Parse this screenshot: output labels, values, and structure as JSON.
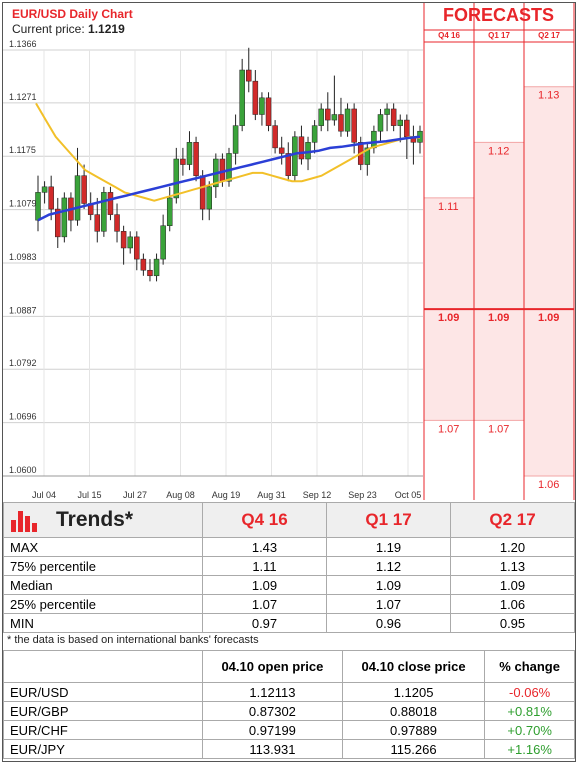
{
  "chart_data": {
    "type": "candlestick",
    "title": "EUR/USD Daily Chart",
    "current_price_label": "Current price:",
    "current_price": "1.1219",
    "y_ticks": [
      "1.1366",
      "1.1271",
      "1.1175",
      "1.1079",
      "1.0983",
      "1.0887",
      "1.0792",
      "1.0696",
      "1.0600"
    ],
    "ylim": [
      1.06,
      1.1366
    ],
    "x_ticks": [
      "Jul 04",
      "Jul 15",
      "Jul 27",
      "Aug 08",
      "Aug 19",
      "Aug 31",
      "Sep 12",
      "Sep 23",
      "Oct 05"
    ],
    "grid": true,
    "candles": [
      [
        1.106,
        1.114,
        1.104,
        1.111
      ],
      [
        1.111,
        1.113,
        1.109,
        1.112
      ],
      [
        1.112,
        1.114,
        1.106,
        1.108
      ],
      [
        1.108,
        1.11,
        1.101,
        1.103
      ],
      [
        1.103,
        1.111,
        1.102,
        1.11
      ],
      [
        1.11,
        1.111,
        1.104,
        1.106
      ],
      [
        1.106,
        1.119,
        1.105,
        1.114
      ],
      [
        1.114,
        1.116,
        1.108,
        1.109
      ],
      [
        1.109,
        1.111,
        1.106,
        1.107
      ],
      [
        1.107,
        1.11,
        1.102,
        1.104
      ],
      [
        1.104,
        1.112,
        1.103,
        1.111
      ],
      [
        1.111,
        1.112,
        1.106,
        1.107
      ],
      [
        1.107,
        1.109,
        1.102,
        1.104
      ],
      [
        1.104,
        1.105,
        1.098,
        1.101
      ],
      [
        1.101,
        1.104,
        1.1,
        1.103
      ],
      [
        1.103,
        1.104,
        1.097,
        1.099
      ],
      [
        1.099,
        1.1,
        1.096,
        1.097
      ],
      [
        1.097,
        1.099,
        1.095,
        1.096
      ],
      [
        1.096,
        1.1,
        1.095,
        1.099
      ],
      [
        1.099,
        1.107,
        1.098,
        1.105
      ],
      [
        1.105,
        1.112,
        1.104,
        1.11
      ],
      [
        1.11,
        1.119,
        1.109,
        1.117
      ],
      [
        1.117,
        1.119,
        1.114,
        1.116
      ],
      [
        1.116,
        1.122,
        1.115,
        1.12
      ],
      [
        1.12,
        1.121,
        1.113,
        1.114
      ],
      [
        1.114,
        1.115,
        1.106,
        1.108
      ],
      [
        1.108,
        1.113,
        1.106,
        1.112
      ],
      [
        1.112,
        1.118,
        1.11,
        1.117
      ],
      [
        1.117,
        1.118,
        1.112,
        1.113
      ],
      [
        1.113,
        1.119,
        1.112,
        1.118
      ],
      [
        1.118,
        1.125,
        1.116,
        1.123
      ],
      [
        1.123,
        1.135,
        1.122,
        1.133
      ],
      [
        1.133,
        1.137,
        1.129,
        1.131
      ],
      [
        1.131,
        1.133,
        1.124,
        1.125
      ],
      [
        1.125,
        1.129,
        1.123,
        1.128
      ],
      [
        1.128,
        1.129,
        1.122,
        1.123
      ],
      [
        1.123,
        1.124,
        1.118,
        1.119
      ],
      [
        1.119,
        1.121,
        1.116,
        1.118
      ],
      [
        1.118,
        1.12,
        1.113,
        1.114
      ],
      [
        1.114,
        1.122,
        1.113,
        1.121
      ],
      [
        1.121,
        1.123,
        1.116,
        1.117
      ],
      [
        1.117,
        1.121,
        1.115,
        1.12
      ],
      [
        1.12,
        1.124,
        1.118,
        1.123
      ],
      [
        1.123,
        1.127,
        1.122,
        1.126
      ],
      [
        1.126,
        1.129,
        1.122,
        1.124
      ],
      [
        1.124,
        1.132,
        1.123,
        1.125
      ],
      [
        1.125,
        1.128,
        1.121,
        1.122
      ],
      [
        1.122,
        1.127,
        1.121,
        1.126
      ],
      [
        1.126,
        1.127,
        1.118,
        1.12
      ],
      [
        1.12,
        1.121,
        1.115,
        1.116
      ],
      [
        1.116,
        1.12,
        1.114,
        1.119
      ],
      [
        1.119,
        1.123,
        1.118,
        1.122
      ],
      [
        1.122,
        1.126,
        1.12,
        1.125
      ],
      [
        1.125,
        1.127,
        1.122,
        1.126
      ],
      [
        1.126,
        1.127,
        1.122,
        1.123
      ],
      [
        1.123,
        1.125,
        1.12,
        1.124
      ],
      [
        1.124,
        1.125,
        1.117,
        1.121
      ],
      [
        1.121,
        1.123,
        1.116,
        1.12
      ],
      [
        1.12,
        1.123,
        1.118,
        1.122
      ]
    ],
    "ma_slow": [
      1.106,
      1.107,
      1.1075,
      1.108,
      1.1085,
      1.109,
      1.1095,
      1.11,
      1.1105,
      1.111,
      1.1115,
      1.112,
      1.1125,
      1.113,
      1.1135,
      1.114,
      1.1145,
      1.115,
      1.1155,
      1.116,
      1.1165,
      1.117,
      1.1175,
      1.118,
      1.1182,
      1.1185,
      1.119,
      1.1192,
      1.1195,
      1.1198,
      1.12,
      1.1202,
      1.1205,
      1.1208,
      1.121
    ],
    "ma_fast": [
      1.127,
      1.124,
      1.121,
      1.119,
      1.117,
      1.115,
      1.114,
      1.113,
      1.112,
      1.111,
      1.1105,
      1.11,
      1.1095,
      1.11,
      1.1105,
      1.111,
      1.1115,
      1.112,
      1.1125,
      1.113,
      1.1135,
      1.114,
      1.1145,
      1.1145,
      1.114,
      1.1135,
      1.113,
      1.113,
      1.1135,
      1.114,
      1.115,
      1.116,
      1.117,
      1.118,
      1.119,
      1.1195,
      1.12,
      1.1205,
      1.121,
      1.1208
    ],
    "forecast_columns": [
      "Q4 16",
      "Q1 17",
      "Q2 17"
    ],
    "forecast_title": "FORECASTS",
    "forecast_ranges": [
      {
        "label_hi": "1.11",
        "hi": 1.11,
        "label_mid": "1.09",
        "mid": 1.09,
        "label_lo": "1.07",
        "lo": 1.07
      },
      {
        "label_hi": "1.12",
        "hi": 1.12,
        "label_mid": "1.09",
        "mid": 1.09,
        "label_lo": "1.07",
        "lo": 1.07
      },
      {
        "label_hi": "1.13",
        "hi": 1.13,
        "label_mid": "1.09",
        "mid": 1.09,
        "label_lo": "1.06",
        "lo": 1.06
      }
    ],
    "colors": {
      "ma_slow": "#2b3fd6",
      "ma_fast": "#f2c029",
      "forecast_fill": "#fde6e6",
      "forecast_red": "#e8262b",
      "bull": "#3aa33a",
      "bear": "#d12a2a"
    }
  },
  "trends": {
    "title": "Trends*",
    "columns": [
      "Q4 16",
      "Q1 17",
      "Q2 17"
    ],
    "rows": [
      {
        "label": "MAX",
        "values": [
          "1.43",
          "1.19",
          "1.20"
        ]
      },
      {
        "label": "75% percentile",
        "values": [
          "1.11",
          "1.12",
          "1.13"
        ]
      },
      {
        "label": "Median",
        "values": [
          "1.09",
          "1.09",
          "1.09"
        ]
      },
      {
        "label": "25% percentile",
        "values": [
          "1.07",
          "1.07",
          "1.06"
        ]
      },
      {
        "label": "MIN",
        "values": [
          "0.97",
          "0.96",
          "0.95"
        ]
      }
    ],
    "note": "* the data is based on international banks' forecasts"
  },
  "prices": {
    "columns": [
      "04.10 open price",
      "04.10 close price",
      "% change"
    ],
    "rows": [
      {
        "pair": "EUR/USD",
        "open": "1.12113",
        "close": "1.1205",
        "change": "-0.06%",
        "dir": "neg"
      },
      {
        "pair": "EUR/GBP",
        "open": "0.87302",
        "close": "0.88018",
        "change": "+0.81%",
        "dir": "pos"
      },
      {
        "pair": "EUR/CHF",
        "open": "0.97199",
        "close": "0.97889",
        "change": "+0.70%",
        "dir": "pos"
      },
      {
        "pair": "EUR/JPY",
        "open": "113.931",
        "close": "115.266",
        "change": "+1.16%",
        "dir": "pos"
      }
    ]
  }
}
